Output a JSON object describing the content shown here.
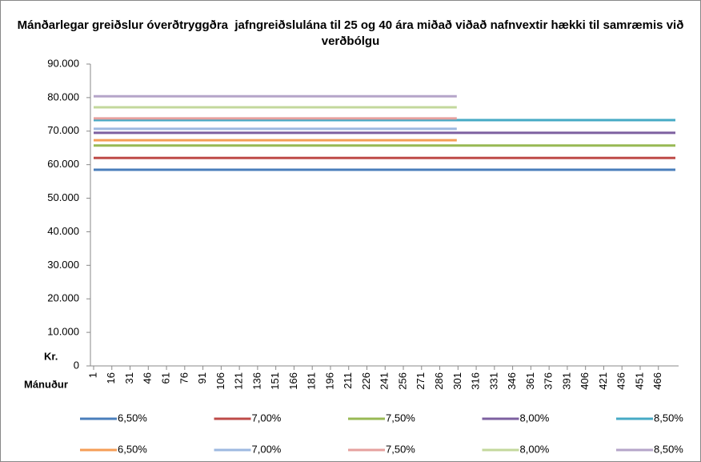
{
  "chart_data": {
    "type": "line",
    "title": "Mánðarlegar greiðslur óverðtryggðra  jafngreiðslulána til 25 og 40 ára miðað viðað nafnvextir hækki til samræmis við verðbólgu",
    "y_label": "Kr.",
    "x_label": "Mánuður",
    "xlim": [
      1,
      480
    ],
    "xticks": [
      1,
      16,
      31,
      46,
      61,
      76,
      91,
      106,
      121,
      136,
      151,
      166,
      181,
      196,
      211,
      226,
      241,
      256,
      271,
      286,
      301,
      316,
      331,
      346,
      361,
      376,
      391,
      406,
      421,
      436,
      451,
      466
    ],
    "ylim": [
      0,
      90000
    ],
    "yticks": [
      {
        "value": 0,
        "label": "0"
      },
      {
        "value": 10000,
        "label": "10.000"
      },
      {
        "value": 20000,
        "label": "20.000"
      },
      {
        "value": 30000,
        "label": "30.000"
      },
      {
        "value": 40000,
        "label": "40.000"
      },
      {
        "value": 50000,
        "label": "50.000"
      },
      {
        "value": 60000,
        "label": "60.000"
      },
      {
        "value": 70000,
        "label": "70.000"
      },
      {
        "value": 80000,
        "label": "80.000"
      },
      {
        "value": 90000,
        "label": "90.000"
      }
    ],
    "legend": "bottom",
    "series": [
      {
        "name": "6,50%",
        "color": "#4a7ebb",
        "x": [
          1,
          480
        ],
        "values": [
          58500,
          58500
        ]
      },
      {
        "name": "7,00%",
        "color": "#be4b48",
        "x": [
          1,
          480
        ],
        "values": [
          62000,
          62000
        ]
      },
      {
        "name": "7,50%",
        "color": "#98b954",
        "x": [
          1,
          480
        ],
        "values": [
          65700,
          65700
        ]
      },
      {
        "name": "8,00%",
        "color": "#7d60a0",
        "x": [
          1,
          480
        ],
        "values": [
          69500,
          69500
        ]
      },
      {
        "name": "8,50%",
        "color": "#46aac5",
        "x": [
          1,
          480
        ],
        "values": [
          73300,
          73300
        ]
      },
      {
        "name": "6,50%",
        "color": "#f59d56",
        "x": [
          1,
          300
        ],
        "values": [
          67300,
          67300
        ]
      },
      {
        "name": "7,00%",
        "color": "#9db9e0",
        "x": [
          1,
          300
        ],
        "values": [
          70700,
          70700
        ]
      },
      {
        "name": "7,50%",
        "color": "#e6a09e",
        "x": [
          1,
          300
        ],
        "values": [
          73800,
          73800
        ]
      },
      {
        "name": "8,00%",
        "color": "#c3d89c",
        "x": [
          1,
          300
        ],
        "values": [
          77100,
          77100
        ]
      },
      {
        "name": "8,50%",
        "color": "#b5a5c9",
        "x": [
          1,
          300
        ],
        "values": [
          80400,
          80400
        ]
      }
    ]
  }
}
